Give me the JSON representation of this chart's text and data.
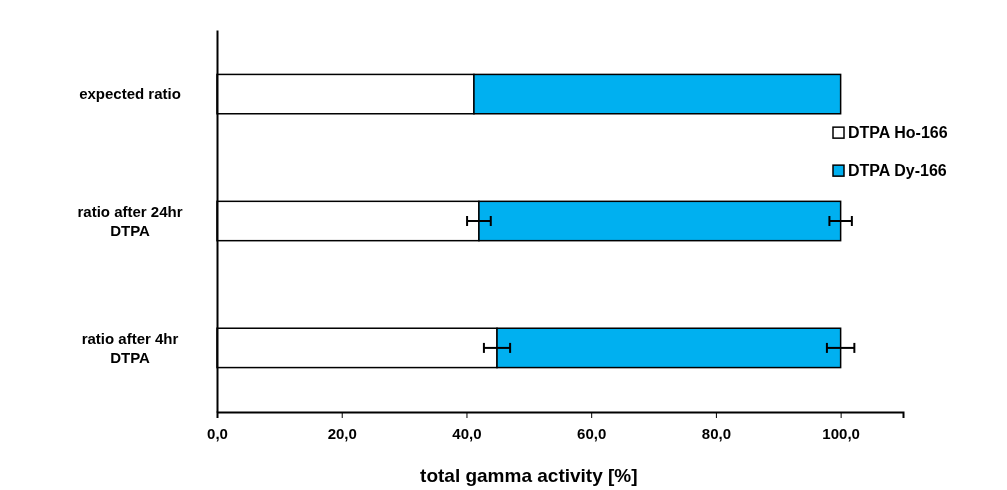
{
  "chart_data": {
    "type": "bar",
    "orientation": "horizontal",
    "stacked": true,
    "xlabel": "total gamma activity [%]",
    "categories": [
      "expected ratio",
      "ratio after 24hr\nDTPA",
      "ratio after 4hr\nDTPA"
    ],
    "series": [
      {
        "name": "DTPA Ho-166",
        "color": "#ffffff",
        "values": [
          41.2,
          42.0,
          44.9
        ],
        "errors": [
          null,
          1.9,
          2.1
        ]
      },
      {
        "name": "DTPA Dy-166",
        "color": "#00b0f0",
        "values": [
          58.8,
          58.0,
          55.1
        ],
        "errors": [
          null,
          1.8,
          2.2
        ]
      }
    ],
    "xlim": [
      0,
      110
    ],
    "xticks": [
      {
        "value": 0,
        "label": "0,0"
      },
      {
        "value": 20,
        "label": "20,0"
      },
      {
        "value": 40,
        "label": "40,0"
      },
      {
        "value": 60,
        "label": "60,0"
      },
      {
        "value": 80,
        "label": "80,0"
      },
      {
        "value": 100,
        "label": "100,0"
      }
    ],
    "legend": "right",
    "grid": false
  }
}
